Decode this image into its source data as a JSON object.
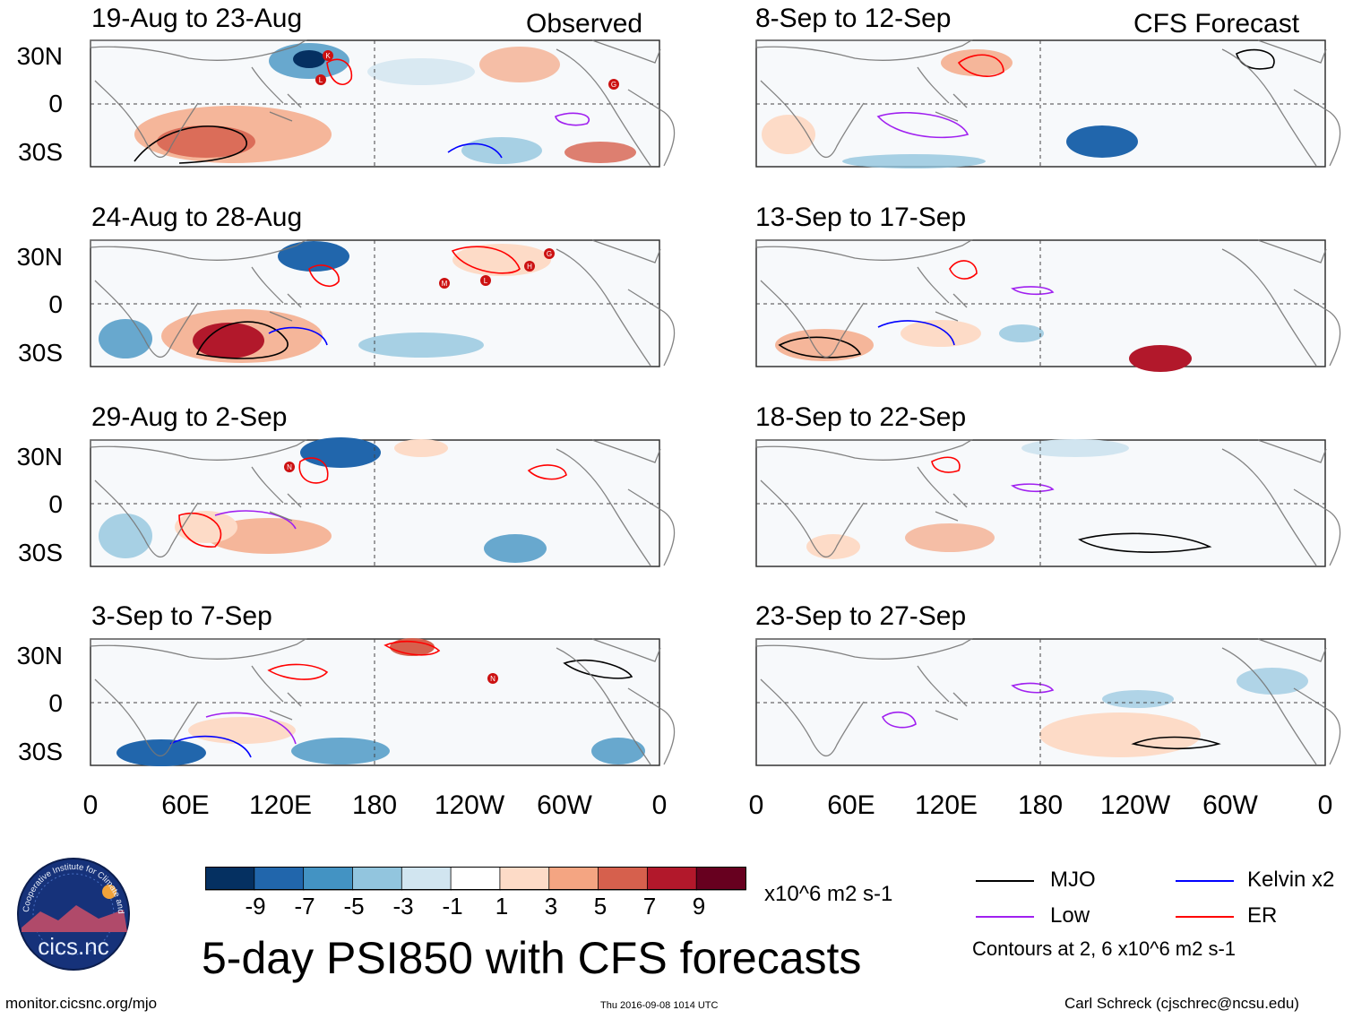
{
  "figure_title": "5-day PSI850 with CFS forecasts",
  "website": "monitor.cicsnc.org/mjo",
  "timestamp": "Thu 2016-09-08 1014 UTC",
  "author": "Carl Schreck (cjschrec@ncsu.edu)",
  "logo": {
    "arc_text": "Cooperative Institute for Climate and Satellites",
    "main_text": "cics.nc"
  },
  "column_headers": {
    "observed": "Observed",
    "forecast": "CFS Forecast"
  },
  "chart_data": {
    "type": "heatmap",
    "variable": "PSI850 anomaly",
    "units": "x10^6 m2 s-1",
    "x_ticks": [
      "0",
      "60E",
      "120E",
      "180",
      "120W",
      "60W",
      "0"
    ],
    "x_range_deg": [
      0,
      360
    ],
    "y_ticks": [
      "30N",
      "0",
      "30S"
    ],
    "y_range_deg": [
      -40,
      40
    ],
    "colorbar": {
      "labels": [
        "-9",
        "-7",
        "-5",
        "-3",
        "-1",
        "1",
        "3",
        "5",
        "7",
        "9"
      ],
      "colors": [
        "#053061",
        "#2166ac",
        "#4393c3",
        "#92c5de",
        "#d1e5f0",
        "#ffffff",
        "#fddbc7",
        "#f4a582",
        "#d6604d",
        "#b2182b",
        "#67001f"
      ]
    },
    "legend": {
      "items": [
        {
          "label": "MJO",
          "color": "#000000"
        },
        {
          "label": "Low",
          "color": "#a020f0"
        },
        {
          "label": "Kelvin x2",
          "color": "#0000ff"
        },
        {
          "label": "ER",
          "color": "#ff0000"
        }
      ],
      "note": "Contours at 2, 6 x10^6 m2 s-1"
    },
    "panels": [
      {
        "period": "19-Aug to 23-Aug",
        "kind": "observed",
        "storm_labels": [
          "K",
          "L",
          "G"
        ]
      },
      {
        "period": "24-Aug to 28-Aug",
        "kind": "observed",
        "storm_labels": [
          "M",
          "L",
          "H",
          "G"
        ]
      },
      {
        "period": "29-Aug to 2-Sep",
        "kind": "observed",
        "storm_labels": [
          "N"
        ]
      },
      {
        "period": "3-Sep to 7-Sep",
        "kind": "observed",
        "storm_labels": [
          "N"
        ]
      },
      {
        "period": "8-Sep to 12-Sep",
        "kind": "forecast",
        "storm_labels": []
      },
      {
        "period": "13-Sep to 17-Sep",
        "kind": "forecast",
        "storm_labels": []
      },
      {
        "period": "18-Sep to 22-Sep",
        "kind": "forecast",
        "storm_labels": []
      },
      {
        "period": "23-Sep to 27-Sep",
        "kind": "forecast",
        "storm_labels": []
      }
    ]
  }
}
